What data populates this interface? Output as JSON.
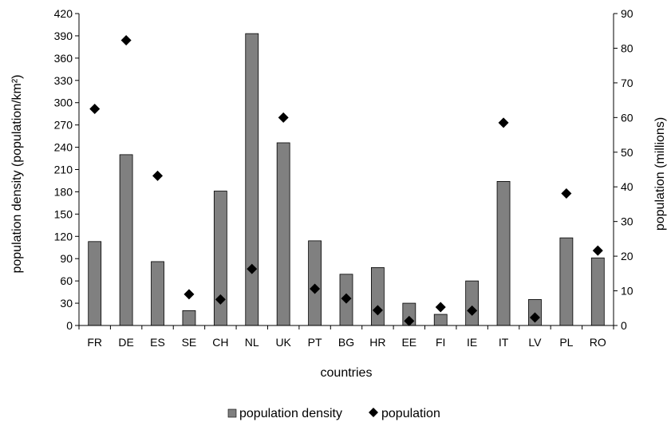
{
  "chart_data": {
    "type": "bar",
    "categories": [
      "FR",
      "DE",
      "ES",
      "SE",
      "CH",
      "NL",
      "UK",
      "PT",
      "BG",
      "HR",
      "EE",
      "FI",
      "IE",
      "IT",
      "LV",
      "PL",
      "RO"
    ],
    "xlabel": "countries",
    "ylabel_left": "population density (population/km²)",
    "ylabel_right": "population (millions)",
    "ylim_left": [
      0,
      420
    ],
    "ylim_right": [
      0,
      90
    ],
    "yticks_left": [
      0,
      30,
      60,
      90,
      120,
      150,
      180,
      210,
      240,
      270,
      300,
      330,
      360,
      390,
      420
    ],
    "yticks_right": [
      0,
      10,
      20,
      30,
      40,
      50,
      60,
      70,
      80,
      90
    ],
    "grid": false,
    "legend_position": "bottom",
    "series": [
      {
        "name": "population density",
        "kind": "bar",
        "axis": "left",
        "color": "#808080",
        "values": [
          113,
          230,
          86,
          20,
          181,
          393,
          246,
          114,
          69,
          78,
          30,
          15,
          60,
          194,
          35,
          118,
          91
        ]
      },
      {
        "name": "population",
        "kind": "marker",
        "marker": "diamond",
        "axis": "right",
        "color": "#000000",
        "values": [
          62.5,
          82.3,
          43.2,
          9.0,
          7.5,
          16.3,
          60.0,
          10.6,
          7.8,
          4.4,
          1.3,
          5.3,
          4.3,
          58.5,
          2.3,
          38.1,
          21.6
        ]
      }
    ]
  }
}
